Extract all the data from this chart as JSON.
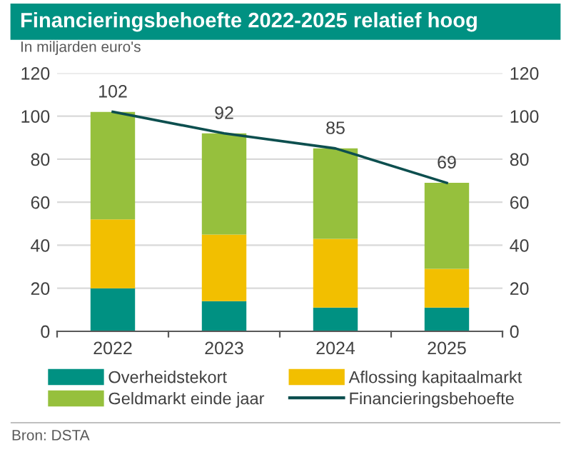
{
  "chart_data": {
    "type": "bar",
    "title": "Financieringsbehoefte 2022-2025 relatief hoog",
    "ylabel": "In miljarden euro's",
    "categories": [
      "2022",
      "2023",
      "2024",
      "2025"
    ],
    "stacked": true,
    "series": [
      {
        "name": "Overheidstekort",
        "color": "#009182",
        "values": [
          20,
          14,
          11,
          11
        ]
      },
      {
        "name": "Aflossing kapitaalmarkt",
        "color": "#f2bf00",
        "values": [
          32,
          31,
          32,
          18
        ]
      },
      {
        "name": "Geldmarkt einde jaar",
        "color": "#96c03d",
        "values": [
          50,
          47,
          42,
          40
        ]
      },
      {
        "name": "Financieringsbehoefte",
        "type": "line",
        "color": "#0d4f4f",
        "values": [
          102,
          92,
          85,
          69
        ],
        "value_labels": [
          "102",
          "92",
          "85",
          "69"
        ]
      }
    ],
    "ylim": [
      0,
      120
    ],
    "yticks": [
      0,
      20,
      40,
      60,
      80,
      100,
      120
    ],
    "y2lim": [
      0,
      120
    ],
    "y2ticks": [
      0,
      20,
      40,
      60,
      80,
      100,
      120
    ],
    "grid": "y",
    "legend": "bottom",
    "annotations": [
      "Bron: DSTA"
    ]
  }
}
